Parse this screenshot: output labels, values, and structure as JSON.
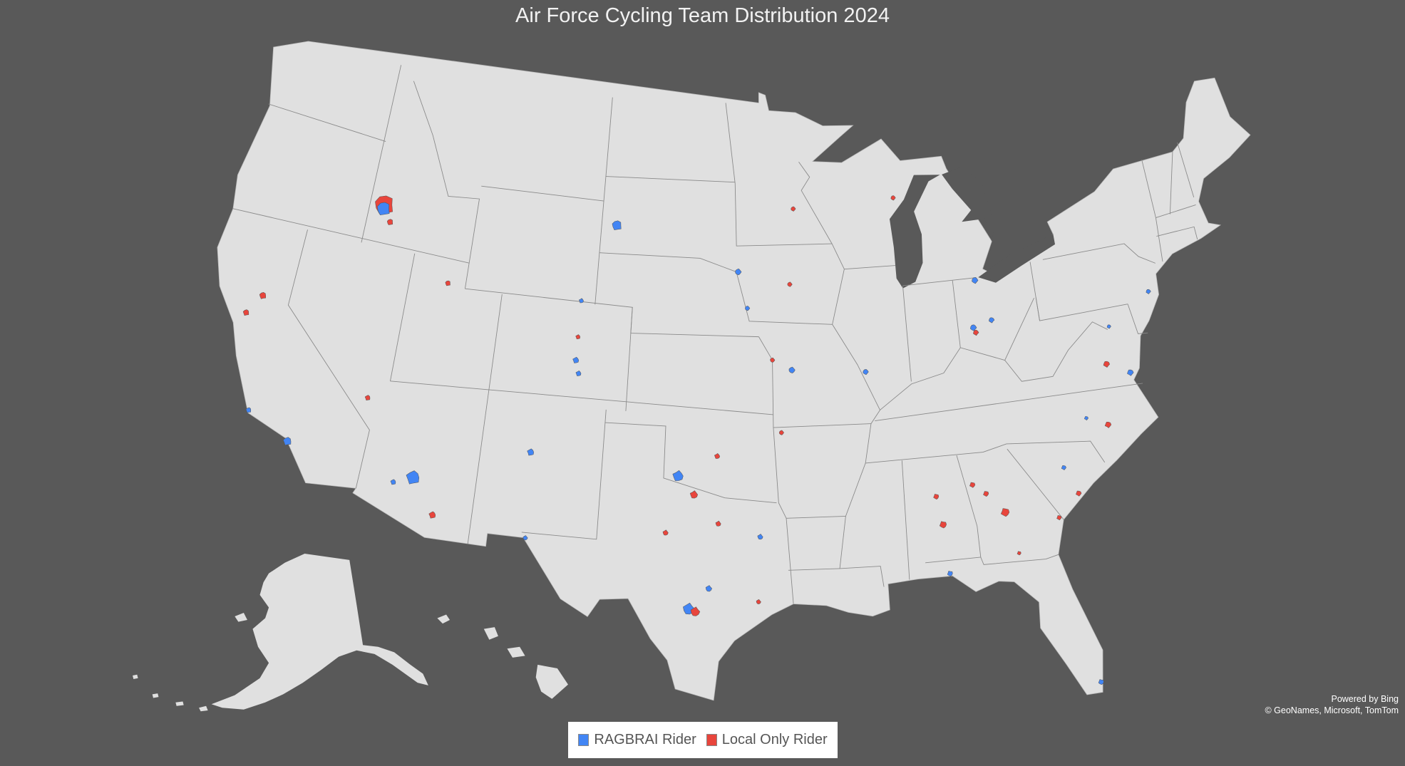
{
  "title": "Air Force Cycling Team Distribution 2024",
  "attribution": {
    "line1": "Powered by Bing",
    "line2": "© GeoNames, Microsoft, TomTom"
  },
  "colors": {
    "background": "#595959",
    "land": "#e0e0e0",
    "ragbrai": "#4285f4",
    "local": "#e8453c"
  },
  "legend": [
    {
      "label": "RAGBRAI Rider",
      "key": "ragbrai",
      "color": "#4285f4"
    },
    {
      "label": "Local Only Rider",
      "key": "local",
      "color": "#e8453c"
    }
  ],
  "map_data": {
    "type": "choropleth-regions",
    "region": "United States",
    "markers": [
      {
        "lon": -116.2,
        "lat": 43.6,
        "type": "local",
        "scale": 2.6
      },
      {
        "lon": -116.2,
        "lat": 43.45,
        "type": "ragbrai",
        "scale": 1.8
      },
      {
        "lon": -115.7,
        "lat": 43.0,
        "type": "local",
        "scale": 0.8
      },
      {
        "lon": -103.2,
        "lat": 44.1,
        "type": "ragbrai",
        "scale": 1.3
      },
      {
        "lon": -112.0,
        "lat": 41.1,
        "type": "local",
        "scale": 0.7
      },
      {
        "lon": -121.4,
        "lat": 39.1,
        "type": "local",
        "scale": 0.9
      },
      {
        "lon": -122.0,
        "lat": 38.3,
        "type": "local",
        "scale": 0.8
      },
      {
        "lon": -120.6,
        "lat": 34.7,
        "type": "ragbrai",
        "scale": 0.7
      },
      {
        "lon": -118.4,
        "lat": 33.9,
        "type": "ragbrai",
        "scale": 1.1
      },
      {
        "lon": -115.0,
        "lat": 36.2,
        "type": "local",
        "scale": 0.7
      },
      {
        "lon": -112.1,
        "lat": 33.5,
        "type": "ragbrai",
        "scale": 1.8
      },
      {
        "lon": -113.0,
        "lat": 33.2,
        "type": "ragbrai",
        "scale": 0.7
      },
      {
        "lon": -110.9,
        "lat": 32.2,
        "type": "local",
        "scale": 0.9
      },
      {
        "lon": -106.6,
        "lat": 35.1,
        "type": "ragbrai",
        "scale": 0.9
      },
      {
        "lon": -104.8,
        "lat": 39.7,
        "type": "local",
        "scale": 0.6
      },
      {
        "lon": -104.8,
        "lat": 38.8,
        "type": "ragbrai",
        "scale": 0.8
      },
      {
        "lon": -104.6,
        "lat": 38.3,
        "type": "ragbrai",
        "scale": 0.7
      },
      {
        "lon": -104.8,
        "lat": 41.1,
        "type": "ragbrai",
        "scale": 0.6
      },
      {
        "lon": -99.3,
        "lat": 34.6,
        "type": "ragbrai",
        "scale": 1.4
      },
      {
        "lon": -97.4,
        "lat": 35.4,
        "type": "local",
        "scale": 0.7
      },
      {
        "lon": -98.5,
        "lat": 33.9,
        "type": "local",
        "scale": 1.0
      },
      {
        "lon": -97.3,
        "lat": 32.8,
        "type": "local",
        "scale": 0.7
      },
      {
        "lon": -99.8,
        "lat": 32.4,
        "type": "local",
        "scale": 0.7
      },
      {
        "lon": -95.3,
        "lat": 32.3,
        "type": "ragbrai",
        "scale": 0.7
      },
      {
        "lon": -98.6,
        "lat": 29.5,
        "type": "ragbrai",
        "scale": 1.5
      },
      {
        "lon": -98.3,
        "lat": 29.4,
        "type": "local",
        "scale": 1.2
      },
      {
        "lon": -97.7,
        "lat": 30.3,
        "type": "ragbrai",
        "scale": 0.8
      },
      {
        "lon": -95.4,
        "lat": 29.8,
        "type": "local",
        "scale": 0.6
      },
      {
        "lon": -106.4,
        "lat": 31.8,
        "type": "ragbrai",
        "scale": 0.6
      },
      {
        "lon": -94.6,
        "lat": 39.1,
        "type": "local",
        "scale": 0.6
      },
      {
        "lon": -93.6,
        "lat": 38.7,
        "type": "ragbrai",
        "scale": 0.8
      },
      {
        "lon": -94.2,
        "lat": 36.3,
        "type": "local",
        "scale": 0.6
      },
      {
        "lon": -96.4,
        "lat": 42.5,
        "type": "ragbrai",
        "scale": 0.8
      },
      {
        "lon": -93.6,
        "lat": 42.0,
        "type": "local",
        "scale": 0.6
      },
      {
        "lon": -95.9,
        "lat": 41.1,
        "type": "ragbrai",
        "scale": 0.6
      },
      {
        "lon": -93.3,
        "lat": 44.9,
        "type": "local",
        "scale": 0.6
      },
      {
        "lon": -87.6,
        "lat": 45.1,
        "type": "local",
        "scale": 0.6
      },
      {
        "lon": -89.8,
        "lat": 38.5,
        "type": "ragbrai",
        "scale": 0.7
      },
      {
        "lon": -83.6,
        "lat": 41.6,
        "type": "ragbrai",
        "scale": 0.8
      },
      {
        "lon": -84.0,
        "lat": 39.8,
        "type": "ragbrai",
        "scale": 0.8
      },
      {
        "lon": -83.9,
        "lat": 39.6,
        "type": "local",
        "scale": 0.7
      },
      {
        "lon": -83.0,
        "lat": 40.0,
        "type": "ragbrai",
        "scale": 0.7
      },
      {
        "lon": -74.6,
        "lat": 40.0,
        "type": "ragbrai",
        "scale": 0.6
      },
      {
        "lon": -77.0,
        "lat": 39.0,
        "type": "ragbrai",
        "scale": 0.5
      },
      {
        "lon": -77.5,
        "lat": 37.6,
        "type": "local",
        "scale": 0.8
      },
      {
        "lon": -76.4,
        "lat": 37.1,
        "type": "ragbrai",
        "scale": 0.8
      },
      {
        "lon": -79.0,
        "lat": 35.7,
        "type": "ragbrai",
        "scale": 0.5
      },
      {
        "lon": -78.0,
        "lat": 35.3,
        "type": "local",
        "scale": 0.8
      },
      {
        "lon": -80.5,
        "lat": 33.97,
        "type": "ragbrai",
        "scale": 0.6
      },
      {
        "lon": -80.0,
        "lat": 32.9,
        "type": "local",
        "scale": 0.7
      },
      {
        "lon": -81.1,
        "lat": 32.1,
        "type": "local",
        "scale": 0.6
      },
      {
        "lon": -85.0,
        "lat": 33.8,
        "type": "local",
        "scale": 0.7
      },
      {
        "lon": -84.4,
        "lat": 33.4,
        "type": "local",
        "scale": 0.7
      },
      {
        "lon": -83.6,
        "lat": 32.6,
        "type": "local",
        "scale": 1.1
      },
      {
        "lon": -83.2,
        "lat": 30.97,
        "type": "local",
        "scale": 0.5
      },
      {
        "lon": -86.8,
        "lat": 33.5,
        "type": "local",
        "scale": 0.7
      },
      {
        "lon": -86.6,
        "lat": 32.4,
        "type": "local",
        "scale": 0.9
      },
      {
        "lon": -86.5,
        "lat": 30.5,
        "type": "ragbrai",
        "scale": 0.7
      },
      {
        "lon": -80.4,
        "lat": 25.6,
        "type": "ragbrai",
        "scale": 0.7
      }
    ]
  }
}
